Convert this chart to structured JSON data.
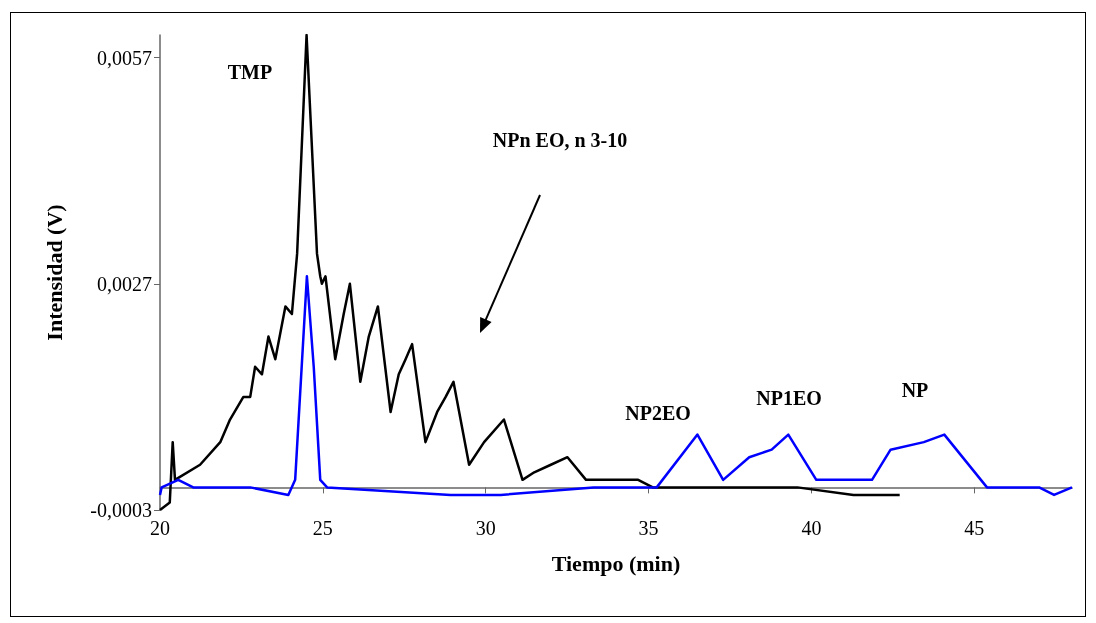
{
  "chart_data": {
    "type": "line",
    "xlabel": "Tiempo (min)",
    "ylabel": "Intensidad (V)",
    "xlim": [
      20,
      48
    ],
    "xticks": [
      20,
      25,
      30,
      35,
      40,
      45
    ],
    "ylim": [
      -0.0003,
      0.006
    ],
    "yticks": [
      {
        "value": -0.0003,
        "label": "-0,0003"
      },
      {
        "value": 0.0027,
        "label": "0,0027"
      },
      {
        "value": 0.0057,
        "label": "0,0057"
      }
    ],
    "grid": false,
    "marker": "none",
    "line_style": "solid",
    "series": [
      {
        "color": "#000000",
        "x": [
          20.0,
          20.3,
          20.39,
          20.46,
          21.23,
          21.85,
          22.15,
          22.56,
          22.77,
          22.92,
          23.13,
          23.33,
          23.54,
          23.85,
          24.05,
          24.21,
          24.5,
          24.82,
          24.92,
          24.97,
          25.08,
          25.38,
          25.64,
          25.83,
          26.15,
          26.41,
          26.69,
          27.08,
          27.33,
          27.54,
          27.74,
          28.15,
          28.51,
          28.77,
          29.01,
          29.49,
          29.95,
          30.56,
          31.13,
          31.49,
          32.0,
          32.51,
          33.08,
          33.88,
          34.68,
          35.13,
          36.15,
          37.87,
          39.57,
          41.29,
          42.71
        ],
        "values": [
          -0.0003,
          -0.0002,
          0.0006,
          0.0001,
          0.0003,
          0.0006,
          0.0009,
          0.0012,
          0.0012,
          0.0016,
          0.0015,
          0.002,
          0.0017,
          0.0024,
          0.0023,
          0.0031,
          0.006,
          0.0031,
          0.0028,
          0.0027,
          0.0028,
          0.0017,
          0.0023,
          0.0027,
          0.0014,
          0.002,
          0.0024,
          0.001,
          0.0015,
          0.0017,
          0.0019,
          0.0006,
          0.001,
          0.0012,
          0.0014,
          0.0003,
          0.0006,
          0.0009,
          0.0001,
          0.0002,
          0.0003,
          0.0004,
          0.0001,
          0.0001,
          0.0001,
          0,
          0,
          0,
          0,
          -0.0001,
          -0.0001
        ]
      },
      {
        "color": "#0000ff",
        "x": [
          20.0,
          20.05,
          20.56,
          21.02,
          22.77,
          23.94,
          24.15,
          24.31,
          24.51,
          24.72,
          24.92,
          25.13,
          28.92,
          30.46,
          33.31,
          35.25,
          36.5,
          37.29,
          38.09,
          38.78,
          39.29,
          40.15,
          41.86,
          42.43,
          43.45,
          44.08,
          45.39,
          46.99,
          47.45,
          48.0
        ],
        "values": [
          -0.0001,
          0,
          0.0001,
          0,
          0,
          -0.0001,
          0.0001,
          0.0013,
          0.0028,
          0.0016,
          0.0001,
          0,
          -0.0001,
          -0.0001,
          0,
          0,
          0.0007,
          0.0001,
          0.0004,
          0.0005,
          0.0007,
          0.0001,
          0.0001,
          0.0005,
          0.0006,
          0.0007,
          0,
          0,
          -0.0001,
          0
        ]
      }
    ],
    "annotations": [
      "TMP",
      "NPn EO, n 3-10",
      "NP2EO",
      "NP1EO",
      "NP"
    ]
  }
}
